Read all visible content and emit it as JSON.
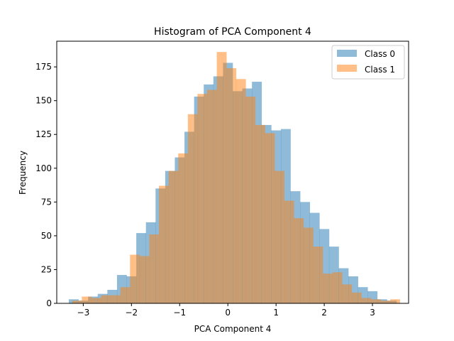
{
  "chart_data": {
    "type": "bar",
    "title": "Histogram of PCA Component 4",
    "xlabel": "PCA Component 4",
    "ylabel": "Frequency",
    "xlim": [
      -3.55,
      3.75
    ],
    "ylim": [
      0,
      194
    ],
    "x_ticks": [
      -3,
      -2,
      -1,
      0,
      1,
      2,
      3
    ],
    "y_ticks": [
      0,
      25,
      50,
      75,
      100,
      125,
      150,
      175
    ],
    "x_tick_labels": [
      "−3",
      "−2",
      "−1",
      "0",
      "1",
      "2",
      "3"
    ],
    "y_tick_labels": [
      "0",
      "25",
      "50",
      "75",
      "100",
      "125",
      "150",
      "175"
    ],
    "legend_position": "top-right",
    "series": [
      {
        "name": "Class 0",
        "color": "#1f77b4",
        "alpha": 0.5,
        "bin_start": -3.3,
        "bin_width": 0.2,
        "counts": [
          3,
          2,
          5,
          7,
          10,
          21,
          20,
          52,
          60,
          85,
          98,
          108,
          127,
          153,
          162,
          168,
          178,
          157,
          159,
          164,
          132,
          128,
          129,
          83,
          75,
          67,
          55,
          42,
          26,
          20,
          12,
          9,
          3,
          2
        ]
      },
      {
        "name": "Class 1",
        "color": "#ff7f0e",
        "alpha": 0.5,
        "bin_start": -3.23,
        "bin_width": 0.2,
        "counts": [
          2,
          5,
          4,
          6,
          6,
          12,
          36,
          35,
          51,
          87,
          98,
          111,
          140,
          155,
          158,
          186,
          174,
          166,
          153,
          132,
          126,
          98,
          76,
          63,
          56,
          42,
          22,
          23,
          14,
          8,
          4,
          3,
          2,
          3
        ]
      }
    ]
  }
}
